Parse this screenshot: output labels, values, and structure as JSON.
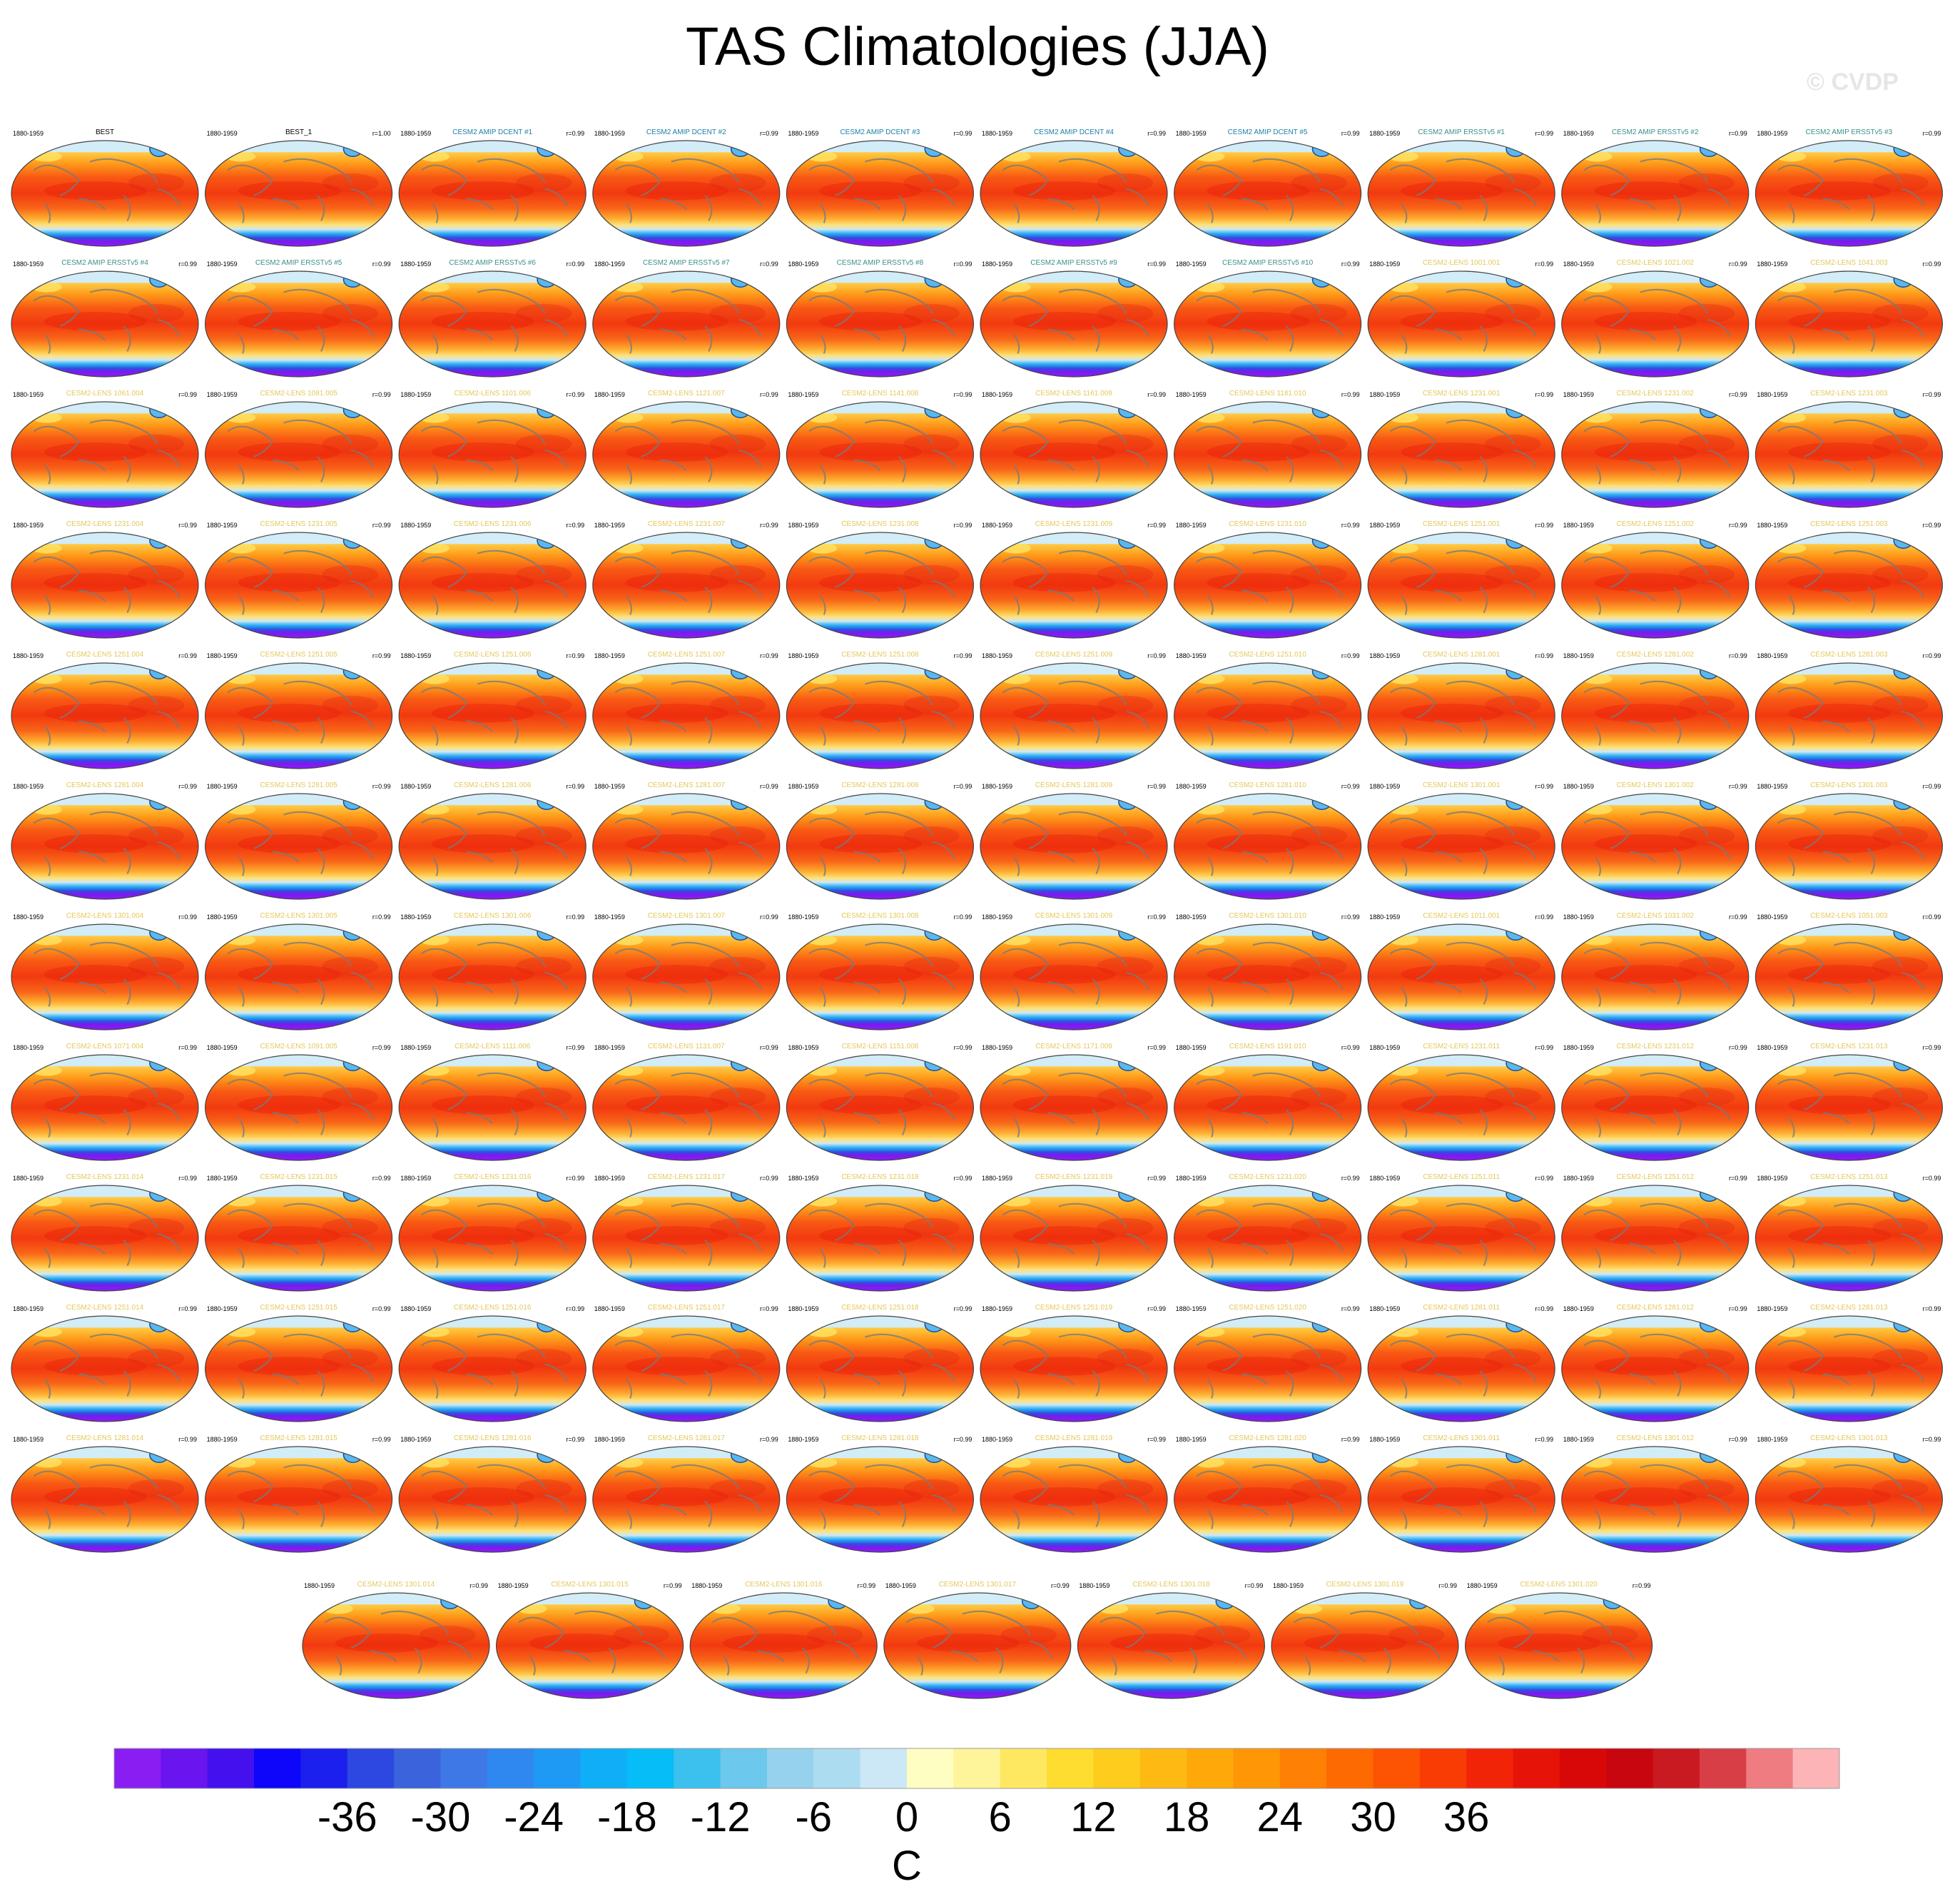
{
  "title": "TAS Climatologies (JJA)",
  "watermark": "© CVDP",
  "colors": {
    "model_label_blue": "#1b7fa8",
    "model_label_teal": "#3a8f8a",
    "model_label_gold": "#e4c85a"
  },
  "chart_data": {
    "type": "map_panels",
    "projection": "robinson",
    "period": "1880-1959",
    "panels": [
      {
        "name": "BEST",
        "corr": ""
      },
      {
        "name": "BEST_1",
        "corr": "r=1.00"
      },
      {
        "name": "CESM2 AMIP DCENT #1",
        "corr": "r=0.99"
      },
      {
        "name": "CESM2 AMIP DCENT #2",
        "corr": "r=0.99"
      },
      {
        "name": "CESM2 AMIP DCENT #3",
        "corr": "r=0.99"
      },
      {
        "name": "CESM2 AMIP DCENT #4",
        "corr": "r=0.99"
      },
      {
        "name": "CESM2 AMIP DCENT #5",
        "corr": "r=0.99"
      },
      {
        "name": "CESM2 AMIP ERSSTv5 #1",
        "corr": "r=0.99"
      },
      {
        "name": "CESM2 AMIP ERSSTv5 #2",
        "corr": "r=0.99"
      },
      {
        "name": "CESM2 AMIP ERSSTv5 #3",
        "corr": "r=0.99"
      },
      {
        "name": "CESM2 AMIP ERSSTv5 #4",
        "corr": "r=0.99"
      },
      {
        "name": "CESM2 AMIP ERSSTv5 #5",
        "corr": "r=0.99"
      },
      {
        "name": "CESM2 AMIP ERSSTv5 #6",
        "corr": "r=0.99"
      },
      {
        "name": "CESM2 AMIP ERSSTv5 #7",
        "corr": "r=0.99"
      },
      {
        "name": "CESM2 AMIP ERSSTv5 #8",
        "corr": "r=0.99"
      },
      {
        "name": "CESM2 AMIP ERSSTv5 #9",
        "corr": "r=0.99"
      },
      {
        "name": "CESM2 AMIP ERSSTv5 #10",
        "corr": "r=0.99"
      },
      {
        "name": "CESM2-LENS 1001.001",
        "corr": "r=0.99"
      },
      {
        "name": "CESM2-LENS 1021.002",
        "corr": "r=0.99"
      },
      {
        "name": "CESM2-LENS 1041.003",
        "corr": "r=0.99"
      },
      {
        "name": "CESM2-LENS 1061.004",
        "corr": "r=0.99"
      },
      {
        "name": "CESM2-LENS 1081.005",
        "corr": "r=0.99"
      },
      {
        "name": "CESM2-LENS 1101.006",
        "corr": "r=0.99"
      },
      {
        "name": "CESM2-LENS 1121.007",
        "corr": "r=0.99"
      },
      {
        "name": "CESM2-LENS 1141.008",
        "corr": "r=0.99"
      },
      {
        "name": "CESM2-LENS 1161.009",
        "corr": "r=0.99"
      },
      {
        "name": "CESM2-LENS 1181.010",
        "corr": "r=0.99"
      },
      {
        "name": "CESM2-LENS 1231.001",
        "corr": "r=0.99"
      },
      {
        "name": "CESM2-LENS 1231.002",
        "corr": "r=0.99"
      },
      {
        "name": "CESM2-LENS 1231.003",
        "corr": "r=0.99"
      },
      {
        "name": "CESM2-LENS 1231.004",
        "corr": "r=0.99"
      },
      {
        "name": "CESM2-LENS 1231.005",
        "corr": "r=0.99"
      },
      {
        "name": "CESM2-LENS 1231.006",
        "corr": "r=0.99"
      },
      {
        "name": "CESM2-LENS 1231.007",
        "corr": "r=0.99"
      },
      {
        "name": "CESM2-LENS 1231.008",
        "corr": "r=0.99"
      },
      {
        "name": "CESM2-LENS 1231.009",
        "corr": "r=0.99"
      },
      {
        "name": "CESM2-LENS 1231.010",
        "corr": "r=0.99"
      },
      {
        "name": "CESM2-LENS 1251.001",
        "corr": "r=0.99"
      },
      {
        "name": "CESM2-LENS 1251.002",
        "corr": "r=0.99"
      },
      {
        "name": "CESM2-LENS 1251.003",
        "corr": "r=0.99"
      },
      {
        "name": "CESM2-LENS 1251.004",
        "corr": "r=0.99"
      },
      {
        "name": "CESM2-LENS 1251.005",
        "corr": "r=0.99"
      },
      {
        "name": "CESM2-LENS 1251.006",
        "corr": "r=0.99"
      },
      {
        "name": "CESM2-LENS 1251.007",
        "corr": "r=0.99"
      },
      {
        "name": "CESM2-LENS 1251.008",
        "corr": "r=0.99"
      },
      {
        "name": "CESM2-LENS 1251.009",
        "corr": "r=0.99"
      },
      {
        "name": "CESM2-LENS 1251.010",
        "corr": "r=0.99"
      },
      {
        "name": "CESM2-LENS 1281.001",
        "corr": "r=0.99"
      },
      {
        "name": "CESM2-LENS 1281.002",
        "corr": "r=0.99"
      },
      {
        "name": "CESM2-LENS 1281.003",
        "corr": "r=0.99"
      },
      {
        "name": "CESM2-LENS 1281.004",
        "corr": "r=0.99"
      },
      {
        "name": "CESM2-LENS 1281.005",
        "corr": "r=0.99"
      },
      {
        "name": "CESM2-LENS 1281.006",
        "corr": "r=0.99"
      },
      {
        "name": "CESM2-LENS 1281.007",
        "corr": "r=0.99"
      },
      {
        "name": "CESM2-LENS 1281.008",
        "corr": "r=0.99"
      },
      {
        "name": "CESM2-LENS 1281.009",
        "corr": "r=0.99"
      },
      {
        "name": "CESM2-LENS 1281.010",
        "corr": "r=0.99"
      },
      {
        "name": "CESM2-LENS 1301.001",
        "corr": "r=0.99"
      },
      {
        "name": "CESM2-LENS 1301.002",
        "corr": "r=0.99"
      },
      {
        "name": "CESM2-LENS 1301.003",
        "corr": "r=0.99"
      },
      {
        "name": "CESM2-LENS 1301.004",
        "corr": "r=0.99"
      },
      {
        "name": "CESM2-LENS 1301.005",
        "corr": "r=0.99"
      },
      {
        "name": "CESM2-LENS 1301.006",
        "corr": "r=0.99"
      },
      {
        "name": "CESM2-LENS 1301.007",
        "corr": "r=0.99"
      },
      {
        "name": "CESM2-LENS 1301.008",
        "corr": "r=0.99"
      },
      {
        "name": "CESM2-LENS 1301.009",
        "corr": "r=0.99"
      },
      {
        "name": "CESM2-LENS 1301.010",
        "corr": "r=0.99"
      },
      {
        "name": "CESM2-LENS 1011.001",
        "corr": "r=0.99"
      },
      {
        "name": "CESM2-LENS 1031.002",
        "corr": "r=0.99"
      },
      {
        "name": "CESM2-LENS 1051.003",
        "corr": "r=0.99"
      },
      {
        "name": "CESM2-LENS 1071.004",
        "corr": "r=0.99"
      },
      {
        "name": "CESM2-LENS 1091.005",
        "corr": "r=0.99"
      },
      {
        "name": "CESM2-LENS 1111.006",
        "corr": "r=0.99"
      },
      {
        "name": "CESM2-LENS 1131.007",
        "corr": "r=0.99"
      },
      {
        "name": "CESM2-LENS 1151.008",
        "corr": "r=0.99"
      },
      {
        "name": "CESM2-LENS 1171.009",
        "corr": "r=0.99"
      },
      {
        "name": "CESM2-LENS 1191.010",
        "corr": "r=0.99"
      },
      {
        "name": "CESM2-LENS 1231.011",
        "corr": "r=0.99"
      },
      {
        "name": "CESM2-LENS 1231.012",
        "corr": "r=0.99"
      },
      {
        "name": "CESM2-LENS 1231.013",
        "corr": "r=0.99"
      },
      {
        "name": "CESM2-LENS 1231.014",
        "corr": "r=0.99"
      },
      {
        "name": "CESM2-LENS 1231.015",
        "corr": "r=0.99"
      },
      {
        "name": "CESM2-LENS 1231.016",
        "corr": "r=0.99"
      },
      {
        "name": "CESM2-LENS 1231.017",
        "corr": "r=0.99"
      },
      {
        "name": "CESM2-LENS 1231.018",
        "corr": "r=0.99"
      },
      {
        "name": "CESM2-LENS 1231.019",
        "corr": "r=0.99"
      },
      {
        "name": "CESM2-LENS 1231.020",
        "corr": "r=0.99"
      },
      {
        "name": "CESM2-LENS 1251.011",
        "corr": "r=0.99"
      },
      {
        "name": "CESM2-LENS 1251.012",
        "corr": "r=0.99"
      },
      {
        "name": "CESM2-LENS 1251.013",
        "corr": "r=0.99"
      },
      {
        "name": "CESM2-LENS 1251.014",
        "corr": "r=0.99"
      },
      {
        "name": "CESM2-LENS 1251.015",
        "corr": "r=0.99"
      },
      {
        "name": "CESM2-LENS 1251.016",
        "corr": "r=0.99"
      },
      {
        "name": "CESM2-LENS 1251.017",
        "corr": "r=0.99"
      },
      {
        "name": "CESM2-LENS 1251.018",
        "corr": "r=0.99"
      },
      {
        "name": "CESM2-LENS 1251.019",
        "corr": "r=0.99"
      },
      {
        "name": "CESM2-LENS 1251.020",
        "corr": "r=0.99"
      },
      {
        "name": "CESM2-LENS 1281.011",
        "corr": "r=0.99"
      },
      {
        "name": "CESM2-LENS 1281.012",
        "corr": "r=0.99"
      },
      {
        "name": "CESM2-LENS 1281.013",
        "corr": "r=0.99"
      },
      {
        "name": "CESM2-LENS 1281.014",
        "corr": "r=0.99"
      },
      {
        "name": "CESM2-LENS 1281.015",
        "corr": "r=0.99"
      },
      {
        "name": "CESM2-LENS 1281.016",
        "corr": "r=0.99"
      },
      {
        "name": "CESM2-LENS 1281.017",
        "corr": "r=0.99"
      },
      {
        "name": "CESM2-LENS 1281.018",
        "corr": "r=0.99"
      },
      {
        "name": "CESM2-LENS 1281.019",
        "corr": "r=0.99"
      },
      {
        "name": "CESM2-LENS 1281.020",
        "corr": "r=0.99"
      },
      {
        "name": "CESM2-LENS 1301.011",
        "corr": "r=0.99"
      },
      {
        "name": "CESM2-LENS 1301.012",
        "corr": "r=0.99"
      },
      {
        "name": "CESM2-LENS 1301.013",
        "corr": "r=0.99"
      },
      {
        "name": "CESM2-LENS 1301.014",
        "corr": "r=0.99"
      },
      {
        "name": "CESM2-LENS 1301.015",
        "corr": "r=0.99"
      },
      {
        "name": "CESM2-LENS 1301.016",
        "corr": "r=0.99"
      },
      {
        "name": "CESM2-LENS 1301.017",
        "corr": "r=0.99"
      },
      {
        "name": "CESM2-LENS 1301.018",
        "corr": "r=0.99"
      },
      {
        "name": "CESM2-LENS 1301.019",
        "corr": "r=0.99"
      },
      {
        "name": "CESM2-LENS 1301.020",
        "corr": "r=0.99"
      }
    ],
    "colorbar": {
      "unit": "C",
      "tick_labels": [
        "-36",
        "-30",
        "-24",
        "-18",
        "-12",
        "-6",
        "0",
        "6",
        "12",
        "18",
        "24",
        "30",
        "36"
      ],
      "tick_values": [
        -36,
        -30,
        -24,
        -18,
        -12,
        -6,
        0,
        6,
        12,
        18,
        24,
        30,
        36
      ],
      "colors": [
        "#8a1ef2",
        "#6a14f0",
        "#4410ee",
        "#0d06fa",
        "#1b20ee",
        "#2c48e0",
        "#3a63dc",
        "#3e78e6",
        "#2f88f0",
        "#1f9af4",
        "#10aef6",
        "#06bdf8",
        "#3cc0ee",
        "#6cc8ec",
        "#96d2ee",
        "#acdcf0",
        "#cce8f6",
        "#fefec2",
        "#fef49a",
        "#fee862",
        "#fedc30",
        "#fecc1c",
        "#feba12",
        "#fea80a",
        "#fe9606",
        "#fe8004",
        "#fe6a02",
        "#fc5402",
        "#f83c04",
        "#f22408",
        "#e61408",
        "#d80808",
        "#c80610",
        "#c81a20",
        "#d83e46",
        "#ee7c80",
        "#fcb4b6"
      ]
    }
  }
}
